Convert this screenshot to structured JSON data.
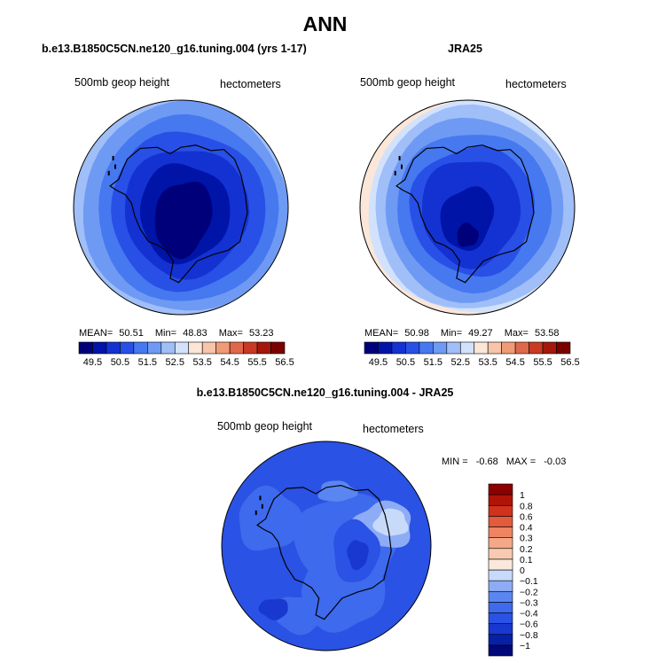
{
  "title": "ANN",
  "panels": [
    {
      "title": "b.e13.B1850C5CN.ne120_g16.tuning.004 (yrs 1-17)",
      "left_label": "500mb geop height",
      "right_label": "hectometers",
      "stats": {
        "mean_label": "MEAN=",
        "mean": "50.51",
        "min_label": "Min=",
        "min": "48.83",
        "max_label": "Max=",
        "max": "53.23"
      }
    },
    {
      "title": "JRA25",
      "left_label": "500mb geop height",
      "right_label": "hectometers",
      "stats": {
        "mean_label": "MEAN=",
        "mean": "50.98",
        "min_label": "Min=",
        "min": "49.27",
        "max_label": "Max=",
        "max": "53.58"
      }
    },
    {
      "title": "b.e13.B1850C5CN.ne120_g16.tuning.004 - JRA25",
      "left_label": "500mb geop height",
      "right_label": "hectometers",
      "stats": {
        "min_label": "MIN =",
        "min": "-0.68",
        "max_label": "MAX =",
        "max": "-0.03"
      }
    }
  ],
  "chart_data": [
    {
      "type": "heatmap",
      "projection": "south-polar-stereographic",
      "title": "b.e13.B1850C5CN.ne120_g16.tuning.004 (yrs 1-17)",
      "variable": "500mb geop height",
      "units": "hectometers",
      "mean": 50.51,
      "min": 48.83,
      "max": 53.23,
      "colorbar": {
        "orientation": "horizontal",
        "levels": [
          49.5,
          50.5,
          51.5,
          52.5,
          53.5,
          54.5,
          55.5,
          56.5
        ],
        "colors": [
          "#00007a",
          "#0014a8",
          "#1432d2",
          "#2850e6",
          "#4678f0",
          "#6e9af4",
          "#a0bef8",
          "#d2e2fc",
          "#fbe6d8",
          "#f8c4aa",
          "#f09a78",
          "#e0684a",
          "#c83a24",
          "#a4180c",
          "#7a0000"
        ]
      }
    },
    {
      "type": "heatmap",
      "projection": "south-polar-stereographic",
      "title": "JRA25",
      "variable": "500mb geop height",
      "units": "hectometers",
      "mean": 50.98,
      "min": 49.27,
      "max": 53.58,
      "colorbar": {
        "orientation": "horizontal",
        "levels": [
          49.5,
          50.5,
          51.5,
          52.5,
          53.5,
          54.5,
          55.5,
          56.5
        ],
        "colors": [
          "#00007a",
          "#0014a8",
          "#1432d2",
          "#2850e6",
          "#4678f0",
          "#6e9af4",
          "#a0bef8",
          "#d2e2fc",
          "#fbe6d8",
          "#f8c4aa",
          "#f09a78",
          "#e0684a",
          "#c83a24",
          "#a4180c",
          "#7a0000"
        ]
      }
    },
    {
      "type": "heatmap",
      "projection": "south-polar-stereographic",
      "title": "b.e13.B1850C5CN.ne120_g16.tuning.004 - JRA25",
      "variable": "500mb geop height",
      "units": "hectometers",
      "min": -0.68,
      "max": -0.03,
      "colorbar": {
        "orientation": "vertical",
        "levels": [
          -1,
          -0.8,
          -0.6,
          -0.4,
          -0.3,
          -0.2,
          -0.1,
          0,
          0.1,
          0.2,
          0.3,
          0.4,
          0.6,
          0.8,
          1
        ],
        "labels": [
          "−1",
          "−0.8",
          "−0.6",
          "−0.4",
          "−0.3",
          "−0.2",
          "−0.1",
          "0",
          "0.1",
          "0.2",
          "0.3",
          "0.4",
          "0.6",
          "0.8",
          "1"
        ],
        "colors": [
          "#00087a",
          "#0820a8",
          "#1838d0",
          "#2a52e4",
          "#3e6aee",
          "#5a86f2",
          "#8eacf6",
          "#c8dafa",
          "#fbe8dc",
          "#f8cab2",
          "#f4a888",
          "#ee8462",
          "#e45a3c",
          "#d0321c",
          "#b01408",
          "#8a0000"
        ]
      }
    }
  ]
}
